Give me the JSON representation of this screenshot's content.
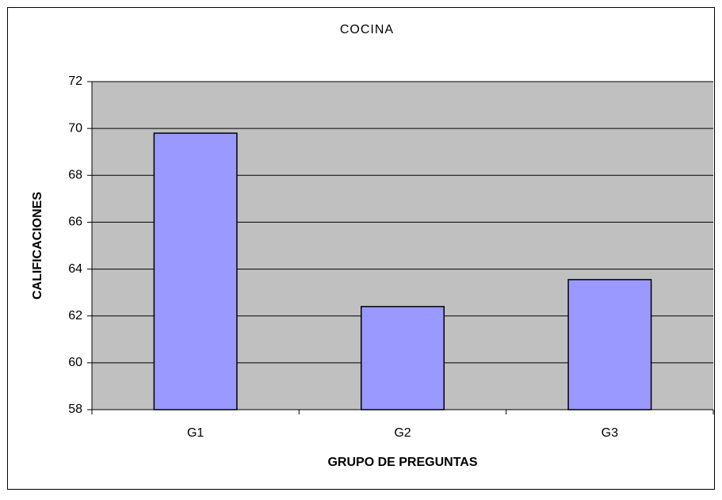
{
  "chart_data": {
    "type": "bar",
    "title": "COCINA",
    "x_label": "GRUPO DE PREGUNTAS",
    "y_label": "CALIFICACIONES",
    "categories": [
      "G1",
      "G2",
      "G3"
    ],
    "values": [
      69.8,
      62.4,
      63.55
    ],
    "color": "#9999ff",
    "ylim": [
      58,
      72
    ],
    "yticks": [
      58,
      60,
      62,
      64,
      66,
      68,
      70,
      72
    ],
    "grid": true,
    "plot_background": "#c0c0c0"
  }
}
